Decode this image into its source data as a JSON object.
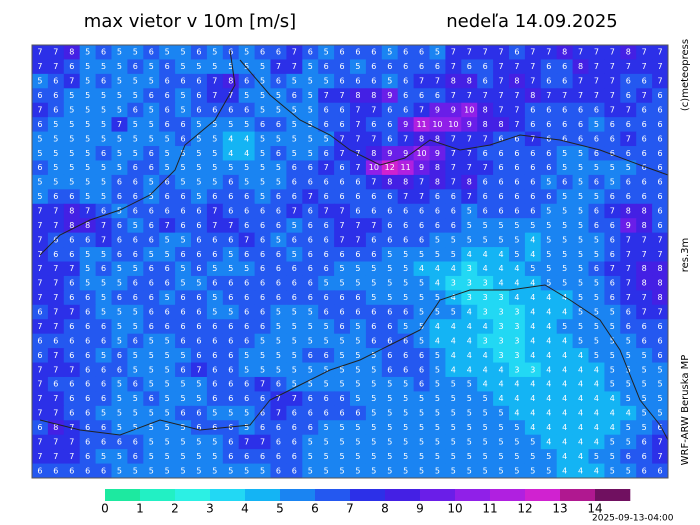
{
  "header": {
    "title": "max vietor v 10m [m/s]",
    "date": "nedeľa 14.09.2025"
  },
  "credits": [
    "(c)meteopress",
    "res.3m",
    "WRF-ARW Beruska MP"
  ],
  "timestamp": "2025-09-13-04:00",
  "field": {
    "rows": [
      [
        7,
        7,
        8,
        5,
        6,
        5,
        5,
        6,
        5,
        5,
        6,
        5,
        6,
        5,
        6,
        6,
        7,
        6,
        5,
        6,
        6,
        6,
        5,
        6,
        6,
        5,
        7,
        7,
        7,
        7,
        6,
        7,
        7,
        8,
        7,
        7,
        7,
        8,
        7,
        7
      ],
      [
        7,
        7,
        6,
        5,
        5,
        5,
        6,
        5,
        6,
        5,
        5,
        5,
        5,
        5,
        5,
        7,
        7,
        5,
        6,
        6,
        5,
        6,
        6,
        6,
        6,
        6,
        7,
        6,
        6,
        7,
        7,
        7,
        6,
        6,
        8,
        7,
        7,
        7,
        7,
        7
      ],
      [
        5,
        6,
        7,
        5,
        6,
        5,
        5,
        5,
        6,
        6,
        6,
        7,
        8,
        6,
        5,
        6,
        5,
        5,
        5,
        6,
        6,
        6,
        5,
        6,
        7,
        7,
        8,
        8,
        6,
        7,
        8,
        7,
        6,
        6,
        7,
        7,
        7,
        6,
        6,
        7
      ],
      [
        6,
        6,
        5,
        5,
        5,
        5,
        5,
        6,
        6,
        5,
        6,
        7,
        7,
        5,
        5,
        5,
        6,
        5,
        7,
        7,
        8,
        8,
        9,
        6,
        6,
        6,
        7,
        7,
        7,
        7,
        7,
        8,
        7,
        7,
        7,
        7,
        7,
        6,
        7,
        6
      ],
      [
        7,
        6,
        5,
        5,
        5,
        5,
        6,
        5,
        6,
        5,
        6,
        6,
        6,
        6,
        5,
        5,
        5,
        5,
        6,
        6,
        7,
        7,
        6,
        6,
        7,
        9,
        9,
        10,
        8,
        7,
        7,
        6,
        6,
        6,
        6,
        6,
        7,
        7,
        6,
        6
      ],
      [
        6,
        5,
        5,
        5,
        5,
        7,
        5,
        5,
        6,
        6,
        5,
        5,
        5,
        5,
        6,
        6,
        5,
        5,
        6,
        6,
        7,
        6,
        6,
        9,
        11,
        10,
        10,
        9,
        8,
        8,
        7,
        6,
        6,
        6,
        6,
        5,
        6,
        6,
        6,
        6
      ],
      [
        5,
        5,
        5,
        5,
        5,
        5,
        5,
        5,
        5,
        6,
        5,
        5,
        4,
        4,
        5,
        5,
        5,
        5,
        5,
        7,
        7,
        7,
        6,
        7,
        8,
        8,
        7,
        7,
        7,
        6,
        6,
        7,
        6,
        6,
        6,
        6,
        6,
        7,
        6,
        6
      ],
      [
        5,
        5,
        5,
        5,
        6,
        5,
        5,
        6,
        5,
        5,
        5,
        5,
        4,
        4,
        5,
        6,
        5,
        5,
        6,
        7,
        7,
        8,
        9,
        9,
        10,
        9,
        7,
        7,
        6,
        6,
        6,
        6,
        6,
        5,
        5,
        6,
        6,
        6,
        6,
        6
      ],
      [
        6,
        5,
        5,
        5,
        5,
        5,
        6,
        6,
        5,
        5,
        5,
        5,
        5,
        5,
        5,
        5,
        6,
        6,
        7,
        6,
        7,
        10,
        12,
        11,
        9,
        8,
        7,
        7,
        7,
        6,
        6,
        6,
        6,
        5,
        5,
        5,
        5,
        5,
        6,
        6
      ],
      [
        5,
        5,
        5,
        5,
        5,
        6,
        6,
        5,
        6,
        5,
        5,
        5,
        6,
        5,
        5,
        5,
        6,
        6,
        6,
        6,
        6,
        7,
        8,
        8,
        7,
        8,
        7,
        8,
        6,
        6,
        6,
        6,
        5,
        6,
        5,
        6,
        5,
        6,
        6,
        6
      ],
      [
        5,
        6,
        6,
        5,
        5,
        6,
        6,
        5,
        6,
        6,
        5,
        6,
        6,
        6,
        5,
        6,
        6,
        7,
        6,
        6,
        6,
        6,
        6,
        7,
        7,
        6,
        6,
        7,
        6,
        6,
        6,
        6,
        6,
        5,
        5,
        5,
        6,
        6,
        6,
        6
      ],
      [
        7,
        7,
        8,
        7,
        6,
        5,
        6,
        6,
        6,
        6,
        6,
        7,
        6,
        6,
        6,
        6,
        7,
        6,
        7,
        7,
        6,
        6,
        6,
        6,
        6,
        6,
        6,
        5,
        6,
        6,
        6,
        6,
        5,
        5,
        5,
        6,
        7,
        8,
        8,
        6
      ],
      [
        7,
        7,
        8,
        8,
        7,
        6,
        5,
        6,
        7,
        6,
        6,
        7,
        7,
        6,
        6,
        6,
        5,
        6,
        6,
        7,
        7,
        7,
        6,
        6,
        6,
        6,
        6,
        5,
        5,
        5,
        5,
        5,
        5,
        5,
        5,
        6,
        6,
        9,
        8,
        6
      ],
      [
        7,
        6,
        6,
        6,
        7,
        6,
        6,
        6,
        5,
        5,
        6,
        6,
        6,
        7,
        6,
        5,
        6,
        6,
        6,
        7,
        7,
        6,
        6,
        6,
        6,
        5,
        5,
        5,
        5,
        5,
        5,
        4,
        5,
        5,
        5,
        5,
        6,
        7,
        7,
        7
      ],
      [
        7,
        6,
        6,
        5,
        5,
        6,
        6,
        5,
        5,
        6,
        6,
        6,
        5,
        6,
        6,
        6,
        5,
        6,
        6,
        6,
        6,
        6,
        5,
        5,
        5,
        5,
        5,
        4,
        4,
        4,
        5,
        4,
        5,
        5,
        5,
        5,
        6,
        7,
        7,
        7
      ],
      [
        7,
        7,
        7,
        5,
        6,
        5,
        5,
        6,
        6,
        5,
        6,
        5,
        5,
        5,
        6,
        6,
        6,
        6,
        6,
        5,
        5,
        5,
        5,
        5,
        4,
        4,
        4,
        3,
        4,
        4,
        4,
        5,
        5,
        5,
        5,
        6,
        7,
        7,
        8,
        8
      ],
      [
        7,
        7,
        6,
        5,
        5,
        5,
        6,
        6,
        6,
        5,
        5,
        6,
        6,
        6,
        6,
        6,
        6,
        6,
        5,
        5,
        5,
        5,
        5,
        5,
        5,
        4,
        3,
        3,
        3,
        4,
        4,
        4,
        5,
        5,
        5,
        5,
        6,
        7,
        8,
        8
      ],
      [
        7,
        7,
        6,
        6,
        5,
        6,
        6,
        6,
        5,
        6,
        6,
        5,
        6,
        6,
        6,
        6,
        6,
        6,
        6,
        6,
        6,
        5,
        5,
        5,
        5,
        5,
        4,
        3,
        3,
        3,
        4,
        4,
        4,
        4,
        5,
        5,
        6,
        7,
        7,
        8
      ],
      [
        6,
        7,
        7,
        6,
        5,
        5,
        5,
        6,
        6,
        6,
        6,
        5,
        5,
        6,
        6,
        5,
        5,
        5,
        6,
        6,
        6,
        6,
        6,
        6,
        5,
        5,
        5,
        4,
        3,
        3,
        3,
        4,
        4,
        4,
        5,
        5,
        5,
        6,
        7,
        7
      ],
      [
        7,
        7,
        6,
        6,
        6,
        5,
        5,
        6,
        6,
        6,
        6,
        6,
        6,
        6,
        6,
        5,
        5,
        5,
        5,
        6,
        5,
        6,
        6,
        5,
        5,
        4,
        4,
        4,
        4,
        3,
        3,
        4,
        4,
        5,
        5,
        5,
        5,
        6,
        6,
        6
      ],
      [
        6,
        6,
        6,
        6,
        6,
        5,
        6,
        5,
        5,
        6,
        6,
        6,
        6,
        6,
        5,
        5,
        5,
        5,
        5,
        5,
        5,
        6,
        6,
        6,
        5,
        4,
        4,
        4,
        3,
        3,
        3,
        4,
        4,
        4,
        5,
        5,
        5,
        5,
        6,
        6
      ],
      [
        6,
        7,
        6,
        6,
        5,
        6,
        5,
        5,
        5,
        5,
        6,
        6,
        6,
        5,
        5,
        5,
        5,
        6,
        6,
        5,
        5,
        5,
        6,
        6,
        6,
        5,
        4,
        4,
        4,
        3,
        3,
        4,
        4,
        4,
        4,
        5,
        5,
        5,
        5,
        6
      ],
      [
        7,
        7,
        7,
        6,
        6,
        6,
        5,
        5,
        5,
        6,
        7,
        6,
        6,
        5,
        5,
        5,
        5,
        5,
        5,
        5,
        5,
        5,
        6,
        6,
        6,
        5,
        4,
        4,
        4,
        4,
        3,
        3,
        4,
        4,
        4,
        4,
        5,
        5,
        5,
        5
      ],
      [
        7,
        6,
        6,
        6,
        6,
        5,
        6,
        5,
        5,
        5,
        5,
        6,
        6,
        6,
        7,
        6,
        5,
        5,
        5,
        5,
        5,
        5,
        5,
        5,
        6,
        5,
        5,
        5,
        4,
        4,
        4,
        4,
        4,
        4,
        4,
        4,
        5,
        5,
        5,
        5
      ],
      [
        7,
        7,
        6,
        6,
        6,
        5,
        5,
        6,
        5,
        5,
        5,
        6,
        6,
        6,
        6,
        7,
        7,
        6,
        6,
        6,
        5,
        5,
        5,
        5,
        5,
        5,
        5,
        5,
        5,
        4,
        4,
        4,
        4,
        4,
        4,
        4,
        4,
        5,
        5,
        5
      ],
      [
        7,
        7,
        6,
        6,
        5,
        5,
        5,
        5,
        5,
        6,
        6,
        5,
        5,
        5,
        6,
        7,
        6,
        6,
        6,
        6,
        6,
        5,
        5,
        5,
        5,
        5,
        5,
        5,
        5,
        5,
        4,
        4,
        4,
        4,
        4,
        4,
        4,
        4,
        5,
        5
      ],
      [
        6,
        8,
        7,
        6,
        6,
        5,
        5,
        5,
        5,
        5,
        6,
        6,
        6,
        5,
        6,
        6,
        6,
        6,
        5,
        5,
        5,
        5,
        5,
        5,
        5,
        5,
        5,
        5,
        5,
        5,
        5,
        4,
        4,
        4,
        4,
        4,
        4,
        5,
        5,
        6
      ],
      [
        7,
        7,
        7,
        6,
        6,
        6,
        6,
        5,
        5,
        5,
        5,
        5,
        6,
        7,
        7,
        6,
        6,
        5,
        5,
        5,
        5,
        5,
        5,
        5,
        5,
        5,
        5,
        5,
        5,
        5,
        5,
        5,
        4,
        4,
        4,
        4,
        5,
        5,
        6,
        7
      ],
      [
        7,
        7,
        7,
        6,
        5,
        5,
        6,
        5,
        5,
        5,
        5,
        5,
        6,
        6,
        6,
        6,
        6,
        5,
        5,
        5,
        5,
        5,
        5,
        5,
        5,
        5,
        5,
        5,
        5,
        5,
        5,
        5,
        5,
        4,
        4,
        5,
        5,
        6,
        6,
        7
      ],
      [
        6,
        6,
        6,
        6,
        6,
        5,
        5,
        5,
        5,
        5,
        5,
        5,
        5,
        5,
        5,
        6,
        6,
        5,
        5,
        5,
        5,
        5,
        5,
        5,
        5,
        5,
        5,
        5,
        5,
        5,
        5,
        5,
        5,
        4,
        4,
        4,
        5,
        5,
        6,
        6
      ]
    ]
  },
  "legend": {
    "levels": [
      0,
      1,
      2,
      3,
      4,
      5,
      6,
      7,
      8,
      9,
      10,
      11,
      12,
      13,
      14
    ],
    "colors": [
      "#1de9a0",
      "#22f0c4",
      "#2cf0e4",
      "#22d8f4",
      "#14b4f4",
      "#1a84f2",
      "#2458f0",
      "#2c30e8",
      "#4420e4",
      "#6a1ee8",
      "#9020e8",
      "#b020e0",
      "#d022d0",
      "#b01890",
      "#701060"
    ]
  }
}
